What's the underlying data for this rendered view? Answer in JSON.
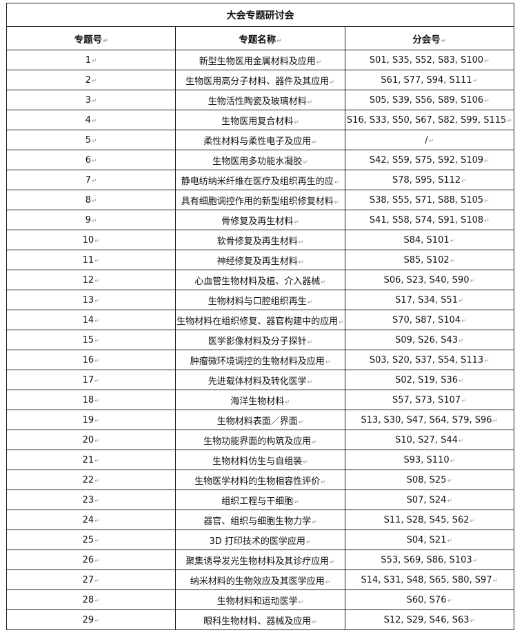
{
  "title": "大会专题研讨会",
  "headers": [
    "专题号",
    "专题名称",
    "分会号"
  ],
  "rows": [
    {
      "no": "1",
      "name": "新型生物医用金属材料及应用",
      "sessions": "S01, S35, S52, S83, S100"
    },
    {
      "no": "2",
      "name": "生物医用高分子材料、器件及其应用",
      "sessions": "S61, S77, S94, S111"
    },
    {
      "no": "3",
      "name": "生物活性陶瓷及玻璃材料",
      "sessions": "S05, S39, S56, S89, S106"
    },
    {
      "no": "4",
      "name": "生物医用复合材料",
      "sessions": "S16, S33, S50, S67, S82, S99, S115"
    },
    {
      "no": "5",
      "name": "柔性材料与柔性电子及应用",
      "sessions": "/"
    },
    {
      "no": "6",
      "name": "生物医用多功能水凝胶",
      "sessions": "S42, S59, S75, S92, S109"
    },
    {
      "no": "7",
      "name": "静电纺纳米纤维在医疗及组织再生的应",
      "sessions": "S78, S95, S112"
    },
    {
      "no": "8",
      "name": "具有细胞调控作用的新型组织修复材料",
      "sessions": "S38, S55, S71, S88, S105"
    },
    {
      "no": "9",
      "name": "骨修复及再生材料",
      "sessions": "S41, S58, S74, S91, S108"
    },
    {
      "no": "10",
      "name": "软骨修复及再生材料",
      "sessions": "S84, S101"
    },
    {
      "no": "11",
      "name": "神经修复及再生材料",
      "sessions": "S85, S102"
    },
    {
      "no": "12",
      "name": "心血管生物材料及植、介入器械",
      "sessions": "S06, S23, S40, S90"
    },
    {
      "no": "13",
      "name": "生物材料与口腔组织再生",
      "sessions": "S17, S34, S51"
    },
    {
      "no": "14",
      "name": "生物材料在组织修复、器官构建中的应用",
      "sessions": "S70, S87, S104"
    },
    {
      "no": "15",
      "name": "医学影像材料及分子探针",
      "sessions": "S09, S26, S43"
    },
    {
      "no": "16",
      "name": "肿瘤微环境调控的生物材料及应用",
      "sessions": "S03, S20, S37, S54, S113"
    },
    {
      "no": "17",
      "name": "先进载体材料及转化医学",
      "sessions": "S02, S19, S36"
    },
    {
      "no": "18",
      "name": "海洋生物材料",
      "sessions": "S57, S73, S107"
    },
    {
      "no": "19",
      "name": "生物材料表面／界面",
      "sessions": "S13, S30, S47, S64, S79, S96"
    },
    {
      "no": "20",
      "name": "生物功能界面的构筑及应用",
      "sessions": "S10, S27, S44"
    },
    {
      "no": "21",
      "name": "生物材料仿生与自组装",
      "sessions": "S93, S110"
    },
    {
      "no": "22",
      "name": "生物医学材料的生物相容性评价",
      "sessions": "S08, S25"
    },
    {
      "no": "23",
      "name": "组织工程与干细胞",
      "sessions": "S07, S24"
    },
    {
      "no": "24",
      "name": "器官、组织与细胞生物力学",
      "sessions": "S11, S28, S45, S62"
    },
    {
      "no": "25",
      "name": "3D 打印技术的医学应用",
      "sessions": "S04, S21"
    },
    {
      "no": "26",
      "name": "聚集诱导发光生物材料及其诊疗应用",
      "sessions": "S53, S69, S86, S103"
    },
    {
      "no": "27",
      "name": "纳米材料的生物效应及其医学应用",
      "sessions": "S14, S31, S48, S65, S80, S97"
    },
    {
      "no": "28",
      "name": "生物材料和运动医学",
      "sessions": "S60, S76"
    },
    {
      "no": "29",
      "name": "眼科生物材料、器械及应用",
      "sessions": "S12, S29, S46, S63"
    }
  ]
}
